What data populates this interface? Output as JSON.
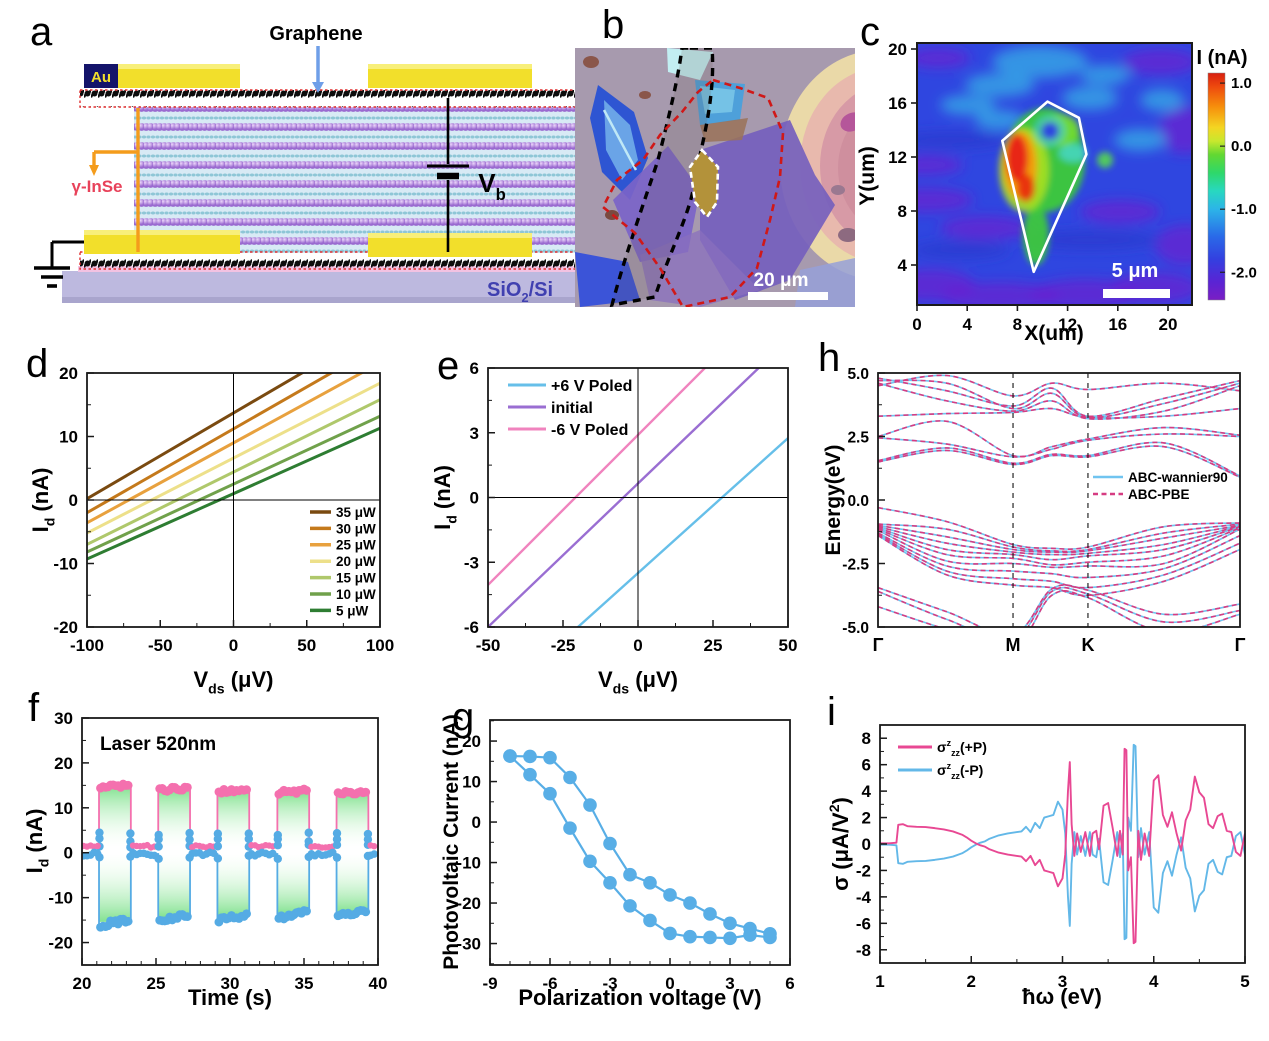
{
  "panel_labels": {
    "a": "a",
    "b": "b",
    "c": "c",
    "d": "d",
    "e": "e",
    "f": "f",
    "g": "g",
    "h": "h",
    "i": "i"
  },
  "panel_a": {
    "graphene": "Graphene",
    "au": "Au",
    "flake": "γ-InSe",
    "bias": [
      {
        "t": "V"
      },
      {
        "t": "b",
        "sub": true
      }
    ],
    "substrate": [
      {
        "t": "SiO"
      },
      {
        "t": "2",
        "sub": true
      },
      {
        "t": "/Si"
      }
    ]
  },
  "panel_b": {
    "scale_bar": "20 μm"
  },
  "charts": {
    "c": {
      "type": "photocurrent-map",
      "xlabel": "X(um)",
      "ylabel": "Y(um)",
      "xticks": [
        0,
        4,
        8,
        12,
        16,
        20
      ],
      "yticks": [
        4,
        8,
        12,
        16,
        20
      ],
      "scale_bar": "5 μm",
      "colorbar": {
        "title": "I (nA)",
        "ticks": [
          "1.0",
          "0.0",
          "-1.0",
          "-2.0"
        ],
        "tick_values": [
          1.0,
          0.0,
          -1.0,
          -2.0
        ],
        "top_value": 1.16,
        "bottom_value": -2.44
      },
      "flake_outline": [
        [
          6.8,
          13.2
        ],
        [
          10.4,
          16.1
        ],
        [
          12.9,
          14.9
        ],
        [
          13.5,
          12.2
        ],
        [
          9.3,
          3.5
        ]
      ]
    },
    "d": {
      "type": "iv-lines",
      "xlim": [
        -100,
        100
      ],
      "ylim": [
        -20,
        20
      ],
      "xticks": [
        -100,
        -50,
        0,
        50,
        100
      ],
      "yticks": [
        -20,
        -10,
        0,
        10,
        20
      ],
      "xlabel": [
        {
          "t": "V"
        },
        {
          "t": "ds",
          "sub": true
        },
        {
          "t": " (μV)"
        }
      ],
      "ylabel": [
        {
          "t": "I"
        },
        {
          "t": "d",
          "sub": true
        },
        {
          "t": " (nA)"
        }
      ],
      "series": [
        {
          "label": "35 μW",
          "color": "#7a4a10",
          "y_at_xlim": [
            0.2,
            27.2
          ]
        },
        {
          "label": "30 μW",
          "color": "#c4791b",
          "y_at_xlim": [
            -2.0,
            24.4
          ]
        },
        {
          "label": "25 μW",
          "color": "#e8a13e",
          "y_at_xlim": [
            -3.6,
            21.6
          ]
        },
        {
          "label": "20 μW",
          "color": "#ede08a",
          "y_at_xlim": [
            -5.2,
            18.4
          ]
        },
        {
          "label": "15 μW",
          "color": "#afc86b",
          "y_at_xlim": [
            -7.0,
            15.8
          ]
        },
        {
          "label": "10 μW",
          "color": "#70a14b",
          "y_at_xlim": [
            -8.2,
            13.2
          ]
        },
        {
          "label": "5 μW",
          "color": "#2e7d32",
          "y_at_xlim": [
            -9.3,
            11.3
          ]
        }
      ]
    },
    "e": {
      "type": "iv-lines",
      "xlim": [
        -50,
        50
      ],
      "ylim": [
        -6,
        6
      ],
      "xticks": [
        -50,
        -25,
        0,
        25,
        50
      ],
      "yticks": [
        -6,
        -3,
        0,
        3,
        6
      ],
      "xlabel": [
        {
          "t": "V"
        },
        {
          "t": "ds",
          "sub": true
        },
        {
          "t": " (μV)"
        }
      ],
      "ylabel": [
        {
          "t": "I"
        },
        {
          "t": "d",
          "sub": true
        },
        {
          "t": " (nA)"
        }
      ],
      "series": [
        {
          "label": "+6 V Poled",
          "color": "#66bfe9",
          "y_at_xlim": [
            -9.75,
            2.75
          ]
        },
        {
          "label": "initial",
          "color": "#9a6ed2",
          "y_at_xlim": [
            -6.0,
            7.3
          ]
        },
        {
          "label": "-6 V Poled",
          "color": "#f083be",
          "y_at_xlim": [
            -4.05,
            9.85
          ]
        }
      ]
    },
    "f": {
      "type": "photoswitching",
      "annotation": "Laser 520nm",
      "xlim": [
        20,
        40
      ],
      "ylim": [
        -25,
        30
      ],
      "xticks": [
        20,
        25,
        30,
        35,
        40
      ],
      "yticks": [
        -20,
        -10,
        0,
        10,
        20,
        30
      ],
      "xlabel": "Time (s)",
      "ylabel": [
        {
          "t": "I"
        },
        {
          "t": "d",
          "sub": true
        },
        {
          "t": " (nA)"
        }
      ],
      "on_starts": [
        21.15,
        25.15,
        29.15,
        33.2,
        37.2
      ],
      "on_width": 2.15,
      "pink_high": [
        14.6,
        14.0,
        13.6,
        13.4,
        13.2
      ],
      "blue_low": [
        -16.2,
        -15.2,
        -15.0,
        -14.5,
        -14.2
      ],
      "pink_base": 1.4,
      "blue_base": -0.3,
      "pink_color": "#f470ae",
      "blue_color": "#55abe4",
      "fill_color": "#7ce08a"
    },
    "g": {
      "type": "hysteresis-loop",
      "xlim": [
        -9,
        6
      ],
      "ylim": [
        -35.3,
        25.2
      ],
      "xticks": [
        -9,
        -6,
        -3,
        0,
        3,
        6
      ],
      "yticks": [
        -30,
        -20,
        -10,
        0,
        10,
        20
      ],
      "xlabel": "Polarization voltage (V)",
      "ylabel": "Photovoltaic Current (nA)",
      "color": "#58aee6",
      "branch_down": [
        [
          -8,
          16.3
        ],
        [
          -7,
          16.2
        ],
        [
          -6,
          15.9
        ],
        [
          -5,
          11.0
        ],
        [
          -4,
          4.2
        ],
        [
          -3,
          -5.3
        ],
        [
          -2,
          -13.0
        ],
        [
          -1,
          -15.0
        ],
        [
          0,
          -18.0
        ],
        [
          1,
          -20.0
        ],
        [
          2,
          -22.7
        ],
        [
          3,
          -25.0
        ],
        [
          4,
          -26.3
        ],
        [
          5,
          -27.6
        ]
      ],
      "branch_up": [
        [
          5,
          -28.5
        ],
        [
          4,
          -27.9
        ],
        [
          3,
          -28.7
        ],
        [
          2,
          -28.5
        ],
        [
          1,
          -28.3
        ],
        [
          0,
          -27.5
        ],
        [
          -1,
          -24.3
        ],
        [
          -2,
          -20.7
        ],
        [
          -3,
          -15.0
        ],
        [
          -4,
          -9.7
        ],
        [
          -5,
          -1.5
        ],
        [
          -6,
          7.0
        ],
        [
          -7,
          11.7
        ],
        [
          -8,
          16.3
        ]
      ]
    },
    "h": {
      "type": "band-structure",
      "ylim": [
        -5,
        5
      ],
      "ytick_labels": [
        "5.0",
        "2.5",
        "0.0",
        "-2.5",
        "-5.0"
      ],
      "ytick_values": [
        5.0,
        2.5,
        0.0,
        -2.5,
        -5.0
      ],
      "xtick_labels": [
        "Γ",
        "M",
        "K",
        "Γ"
      ],
      "xtick_pos": [
        0,
        0.373,
        0.58,
        1
      ],
      "ylabel": "Energy(eV)",
      "legend": [
        {
          "label": "ABC-wannier90",
          "color": "#70c4f0",
          "dash": false
        },
        {
          "label": "ABC-PBE",
          "color": "#d63c82",
          "dash": true
        }
      ],
      "control_x": [
        0,
        0.19,
        0.373,
        0.48,
        0.58,
        0.79,
        1.0
      ],
      "bands": [
        [
          4.8,
          4.3,
          3.7,
          4.4,
          3.3,
          4.0,
          4.7
        ],
        [
          4.7,
          4.6,
          3.6,
          4.2,
          3.25,
          3.8,
          4.6
        ],
        [
          4.6,
          3.9,
          3.5,
          3.9,
          3.2,
          3.5,
          4.5
        ],
        [
          4.5,
          4.9,
          4.1,
          4.6,
          4.35,
          4.6,
          4.3
        ],
        [
          3.3,
          3.4,
          3.45,
          3.6,
          3.25,
          3.3,
          3.6
        ],
        [
          2.5,
          3.1,
          1.75,
          2.1,
          2.4,
          2.85,
          2.55
        ],
        [
          2.45,
          2.2,
          1.7,
          2.0,
          2.35,
          2.6,
          2.5
        ],
        [
          1.55,
          2.05,
          1.45,
          1.8,
          1.75,
          2.25,
          0.95
        ],
        [
          1.5,
          1.95,
          1.4,
          1.75,
          1.7,
          2.1,
          0.9
        ],
        [
          -0.3,
          -0.85,
          -1.75,
          -1.9,
          -1.85,
          -1.05,
          -0.9
        ],
        [
          -0.95,
          -1.15,
          -1.85,
          -2.0,
          -1.95,
          -1.3,
          -0.95
        ],
        [
          -1.0,
          -1.45,
          -1.95,
          -2.05,
          -2.0,
          -1.5,
          -1.0
        ],
        [
          -1.05,
          -1.7,
          -2.05,
          -2.15,
          -2.1,
          -1.75,
          -1.02
        ],
        [
          -1.1,
          -1.95,
          -2.15,
          -2.35,
          -2.2,
          -1.95,
          -1.05
        ],
        [
          -1.15,
          -2.15,
          -2.3,
          -2.55,
          -2.45,
          -2.2,
          -1.1
        ],
        [
          -1.2,
          -2.4,
          -2.5,
          -2.65,
          -2.6,
          -2.5,
          -1.15
        ],
        [
          -1.3,
          -2.6,
          -2.8,
          -2.9,
          -3.05,
          -2.7,
          -1.4
        ],
        [
          -1.35,
          -2.8,
          -3.1,
          -3.2,
          -3.45,
          -2.95,
          -1.7
        ],
        [
          -1.4,
          -2.95,
          -3.35,
          -3.45,
          -3.75,
          -3.2,
          -1.95
        ],
        [
          -3.45,
          -4.4,
          -5.3,
          -3.5,
          -3.55,
          -4.5,
          -4.1
        ],
        [
          -3.6,
          -4.7,
          -5.5,
          -3.6,
          -3.7,
          -4.8,
          -4.35
        ],
        [
          -4.2,
          -5.1,
          -5.8,
          -3.75,
          -3.85,
          -5.2,
          -4.5
        ]
      ]
    },
    "i": {
      "type": "shift-current-spectra",
      "xlim": [
        1,
        5
      ],
      "ylim": [
        -9,
        9
      ],
      "xticks": [
        1,
        2,
        3,
        4,
        5
      ],
      "yticks": [
        8,
        6,
        4,
        2,
        0,
        -2,
        -4,
        -6,
        -8
      ],
      "xlabel": "ħω (eV)",
      "ylabel": [
        {
          "t": "σ (μA/V"
        },
        {
          "t": "2",
          "sup": true
        },
        {
          "t": ")"
        }
      ],
      "legend": [
        {
          "parts": [
            {
              "t": "σ"
            },
            {
              "t": "z",
              "sup": true
            },
            {
              "t": "zz",
              "sub": true
            },
            {
              "t": "(+P)"
            }
          ],
          "color": "#e84893"
        },
        {
          "parts": [
            {
              "t": "σ"
            },
            {
              "t": "z",
              "sup": true
            },
            {
              "t": "zz",
              "sub": true
            },
            {
              "t": "(-P)"
            }
          ],
          "color": "#63b8e8"
        }
      ],
      "x": [
        1.0,
        1.1,
        1.18,
        1.2,
        1.25,
        1.3,
        1.4,
        1.5,
        1.6,
        1.7,
        1.8,
        1.9,
        1.95,
        2.0,
        2.05,
        2.1,
        2.15,
        2.2,
        2.3,
        2.4,
        2.5,
        2.55,
        2.6,
        2.65,
        2.7,
        2.75,
        2.8,
        2.85,
        2.9,
        2.95,
        3.0,
        3.03,
        3.06,
        3.08,
        3.1,
        3.13,
        3.16,
        3.2,
        3.25,
        3.3,
        3.33,
        3.37,
        3.4,
        3.45,
        3.5,
        3.55,
        3.6,
        3.63,
        3.66,
        3.68,
        3.7,
        3.72,
        3.75,
        3.78,
        3.8,
        3.83,
        3.86,
        3.9,
        3.95,
        4.0,
        4.05,
        4.1,
        4.15,
        4.2,
        4.25,
        4.3,
        4.35,
        4.4,
        4.45,
        4.5,
        4.55,
        4.6,
        4.65,
        4.7,
        4.75,
        4.8,
        4.85,
        4.9,
        4.95,
        5.0
      ],
      "sigma_plus_P": [
        0.05,
        0.05,
        0.1,
        1.45,
        1.5,
        1.35,
        1.3,
        1.28,
        1.2,
        1.1,
        0.95,
        0.7,
        0.5,
        0.25,
        0.05,
        -0.1,
        -0.2,
        -0.4,
        -0.65,
        -0.8,
        -0.9,
        -0.95,
        -1.3,
        -0.9,
        -1.6,
        -1.2,
        -2.0,
        -2.1,
        -2.2,
        -3.2,
        -2.6,
        -0.8,
        4.0,
        6.2,
        1.5,
        -0.9,
        0.8,
        -0.6,
        0.9,
        -0.9,
        0.8,
        1.0,
        -0.4,
        2.9,
        3.1,
        1.2,
        -0.9,
        1.0,
        -0.8,
        7.2,
        7.1,
        -2.0,
        -1.0,
        -7.5,
        -7.4,
        1.0,
        -1.2,
        0.8,
        -0.9,
        4.8,
        5.2,
        2.2,
        1.3,
        2.4,
        0.8,
        -0.5,
        1.8,
        2.6,
        5.1,
        3.9,
        3.5,
        1.5,
        1.2,
        2.1,
        2.3,
        1.0,
        0.9,
        -0.6,
        -0.9,
        0.8
      ],
      "sigma_minus_P_is_mirror": true
    }
  }
}
